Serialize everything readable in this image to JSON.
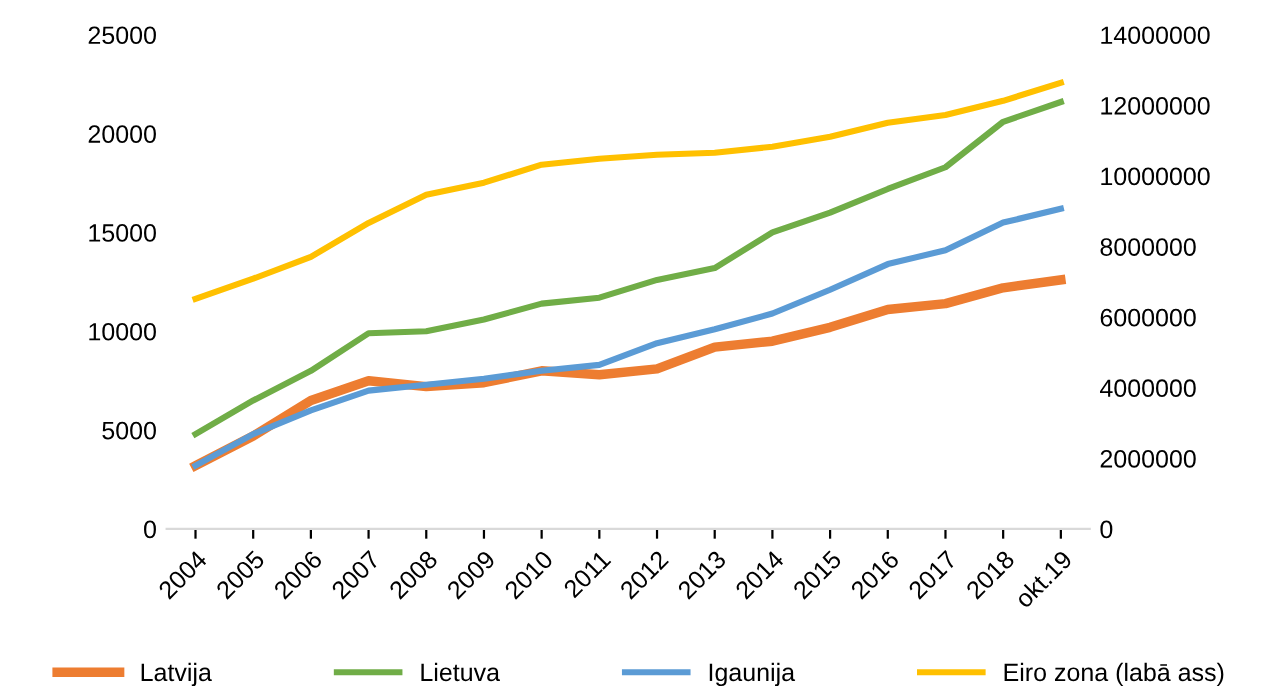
{
  "chart_data": {
    "type": "line",
    "categories": [
      "2004",
      "2005",
      "2006",
      "2007",
      "2008",
      "2009",
      "2010",
      "2011",
      "2012",
      "2013",
      "2014",
      "2015",
      "2016",
      "2017",
      "2018",
      "okt.19"
    ],
    "series": [
      {
        "name": "Latvija",
        "color": "#ed7d31",
        "values": [
          3200,
          4700,
          6500,
          7500,
          7200,
          7400,
          8000,
          7800,
          8100,
          9200,
          9500,
          10200,
          11100,
          11400,
          12200,
          12600
        ]
      },
      {
        "name": "Lietuva",
        "color": "#70ad47",
        "values": [
          4800,
          6500,
          8000,
          9900,
          10000,
          10600,
          11400,
          11700,
          12600,
          13200,
          15000,
          16000,
          17200,
          18300,
          20600,
          21600
        ]
      },
      {
        "name": "Igaunija",
        "color": "#5b9bd5",
        "values": [
          3200,
          4800,
          6000,
          7000,
          7300,
          7600,
          8000,
          8300,
          9400,
          10100,
          10900,
          12100,
          13400,
          14100,
          15500,
          16200
        ]
      },
      {
        "name": "Eiro zona (labā ass)",
        "color": "#ffc000",
        "axis": "y2",
        "values": [
          6520000,
          7090000,
          7710000,
          8670000,
          9470000,
          9810000,
          10320000,
          10490000,
          10600000,
          10660000,
          10830000,
          11110000,
          11510000,
          11730000,
          12130000,
          12640000
        ]
      }
    ],
    "ylim": [
      0,
      25000
    ],
    "yticks": [
      0,
      5000,
      10000,
      15000,
      20000,
      25000
    ],
    "y2lim": [
      0,
      14000000
    ],
    "y2ticks": [
      0,
      2000000,
      4000000,
      6000000,
      8000000,
      10000000,
      12000000,
      14000000
    ],
    "grid": false,
    "legend": "bottom",
    "marker": "none",
    "line_style": "solid"
  }
}
